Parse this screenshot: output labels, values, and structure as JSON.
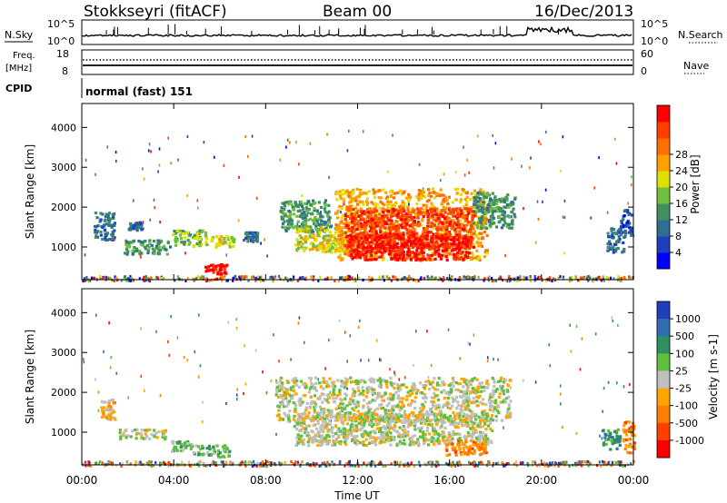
{
  "header": {
    "station": "Stokkseyri (fitACF)",
    "beam": "Beam 00",
    "date": "16/Dec/2013"
  },
  "top_panels": {
    "nsky_label": "N.Sky",
    "nsky_ticks": [
      "10^5",
      "10^0"
    ],
    "nsearch_label": "N.Search",
    "nsearch_ticks": [
      "10^5",
      "10^0"
    ],
    "freq_label": "Freq.",
    "freq_unit": "[MHz]",
    "freq_ticks": [
      "18",
      "8"
    ],
    "nave_label": "Nave",
    "nave_ticks": [
      "60",
      "0"
    ],
    "cpid_label": "CPID",
    "cpid_text": "normal (fast) 151"
  },
  "chart_data": [
    {
      "type": "heatmap",
      "name": "power",
      "ylabel": "Slant Range [km]",
      "y_ticks": [
        "1000",
        "2000",
        "3000",
        "4000"
      ],
      "ylim": [
        180,
        4600
      ],
      "colorbar": {
        "label": "Power [dB]",
        "tick_labels": [
          "4",
          "8",
          "12",
          "16",
          "20",
          "24",
          "28"
        ],
        "colors": [
          "#0000ff",
          "#1f3fbf",
          "#2f6f8f",
          "#3f8f5f",
          "#6fbf3f",
          "#dfdf00",
          "#ff9f00",
          "#ff6f00",
          "#ff3f00",
          "#ff0000"
        ]
      },
      "regions": [
        {
          "t0": 0.5,
          "t1": 1.4,
          "r0": 1200,
          "r1": 1900,
          "level": 2
        },
        {
          "t0": 2.0,
          "t1": 2.6,
          "r0": 1450,
          "r1": 1650,
          "level": 2
        },
        {
          "t0": 1.8,
          "t1": 3.8,
          "r0": 850,
          "r1": 1200,
          "level": 3
        },
        {
          "t0": 3.9,
          "t1": 5.4,
          "r0": 1050,
          "r1": 1450,
          "level": 4
        },
        {
          "t0": 5.5,
          "t1": 6.6,
          "r0": 1000,
          "r1": 1300,
          "level": 5
        },
        {
          "t0": 5.3,
          "t1": 6.3,
          "r0": 350,
          "r1": 600,
          "level": 9
        },
        {
          "t0": 7.0,
          "t1": 7.6,
          "r0": 1150,
          "r1": 1400,
          "level": 2
        },
        {
          "t0": 8.6,
          "t1": 10.8,
          "r0": 1400,
          "r1": 2200,
          "level": 3
        },
        {
          "t0": 9.2,
          "t1": 11.4,
          "r0": 900,
          "r1": 1500,
          "level": 5
        },
        {
          "t0": 11.0,
          "t1": 17.6,
          "r0": 700,
          "r1": 2500,
          "level": 6
        },
        {
          "t0": 11.4,
          "t1": 17.0,
          "r0": 1000,
          "r1": 2000,
          "level": 8
        },
        {
          "t0": 11.6,
          "t1": 16.8,
          "r0": 700,
          "r1": 1350,
          "level": 9
        },
        {
          "t0": 17.0,
          "t1": 18.8,
          "r0": 1500,
          "r1": 2400,
          "level": 3
        },
        {
          "t0": 22.8,
          "t1": 23.6,
          "r0": 900,
          "r1": 1500,
          "level": 2
        },
        {
          "t0": 23.4,
          "t1": 23.9,
          "r0": 1300,
          "r1": 2000,
          "level": 1
        }
      ]
    },
    {
      "type": "heatmap",
      "name": "velocity",
      "ylabel": "Slant Range [km]",
      "y_ticks": [
        "1000",
        "2000",
        "3000",
        "4000"
      ],
      "ylim": [
        180,
        4600
      ],
      "colorbar": {
        "label": "Velocity [m s-1]",
        "tick_labels": [
          "1000",
          "500",
          "100",
          "25",
          "-25",
          "-100",
          "-500",
          "-1000"
        ],
        "colors": [
          "#1f3fbf",
          "#2f6faf",
          "#2f8f5f",
          "#5fbf3f",
          "#bfbfbf",
          "#ffa500",
          "#ff7f00",
          "#ff3f00",
          "#ff0000"
        ]
      },
      "regions": [
        {
          "t0": 0.8,
          "t1": 1.4,
          "r0": 1350,
          "r1": 1850,
          "level": 5
        },
        {
          "t0": 1.6,
          "t1": 3.6,
          "r0": 850,
          "r1": 1100,
          "level": 4
        },
        {
          "t0": 3.8,
          "t1": 4.8,
          "r0": 550,
          "r1": 800,
          "level": 3
        },
        {
          "t0": 4.8,
          "t1": 6.4,
          "r0": 400,
          "r1": 700,
          "level": 3
        },
        {
          "t0": 8.4,
          "t1": 18.6,
          "r0": 1300,
          "r1": 2400,
          "level": 4
        },
        {
          "t0": 9.2,
          "t1": 17.8,
          "r0": 700,
          "r1": 1500,
          "level": 4
        },
        {
          "t0": 15.8,
          "t1": 17.6,
          "r0": 450,
          "r1": 800,
          "level": 6
        },
        {
          "t0": 22.6,
          "t1": 23.4,
          "r0": 600,
          "r1": 1100,
          "level": 2
        },
        {
          "t0": 23.5,
          "t1": 24.0,
          "r0": 500,
          "r1": 1300,
          "level": 6
        }
      ]
    }
  ],
  "x_axis": {
    "label": "Time UT",
    "ticks": [
      "00:00",
      "04:00",
      "08:00",
      "12:00",
      "16:00",
      "20:00",
      "00:00"
    ]
  }
}
